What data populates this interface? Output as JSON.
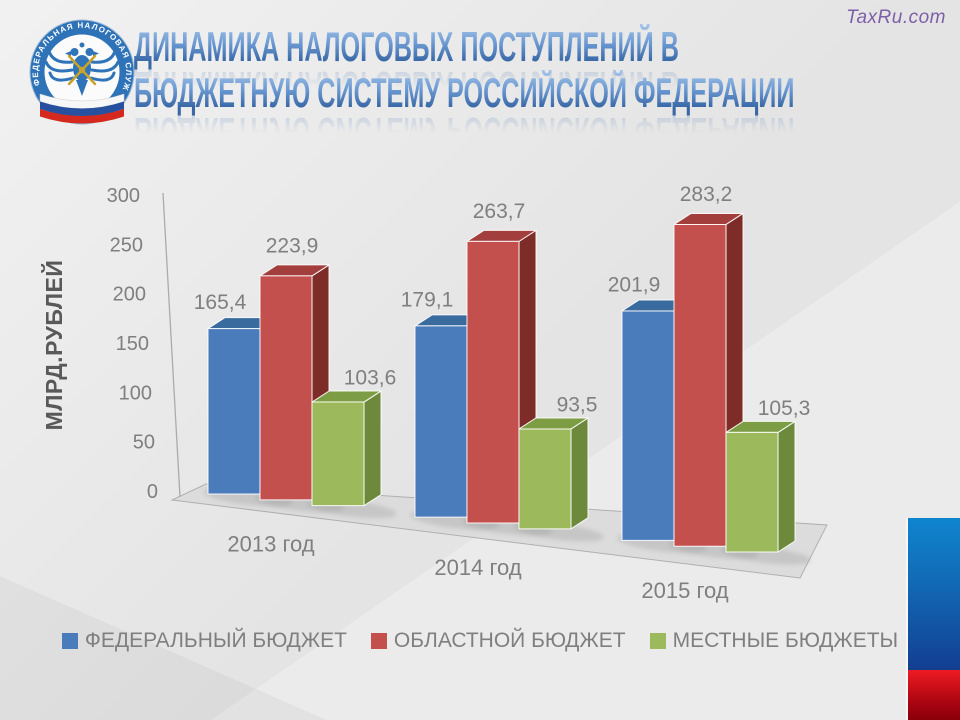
{
  "watermark": "TaxRu.com",
  "header": {
    "title_line1": "ДИНАМИКА НАЛОГОВЫХ ПОСТУПЛЕНИЙ В",
    "title_line2": "БЮДЖЕТНУЮ СИСТЕМУ РОССИЙСКОЙ ФЕДЕРАЦИИ",
    "logo_ring_text": "ФЕДЕРАЛЬНАЯ НАЛОГОВАЯ СЛУЖБА"
  },
  "chart_data": {
    "type": "bar",
    "style": "3d-clustered",
    "title": "",
    "xlabel": "",
    "ylabel": "МЛРД.РУБЛЕЙ",
    "ylim": [
      0,
      300
    ],
    "yticks": [
      300,
      250,
      200,
      150,
      100,
      50,
      0
    ],
    "grid": false,
    "legend_position": "bottom",
    "value_label_decimal_separator": ",",
    "axis_text_color": "#7f7f7f",
    "categories": [
      "2013 год",
      "2014 год",
      "2015 год"
    ],
    "series": [
      {
        "name": "ФЕДЕРАЛЬНЫЙ БЮДЖЕТ",
        "values": [
          165.4,
          179.1,
          201.9
        ],
        "color": {
          "front": "#4a7cbc",
          "top": "#3a6b9f",
          "side": "#2b547f"
        }
      },
      {
        "name": "ОБЛАСТНОЙ БЮДЖЕТ",
        "values": [
          223.9,
          263.7,
          283.2
        ],
        "color": {
          "front": "#c4504e",
          "top": "#a23f3d",
          "side": "#7e2c27"
        }
      },
      {
        "name": "МЕСТНЫЕ БЮДЖЕТЫ",
        "values": [
          103.6,
          93.5,
          105.3
        ],
        "color": {
          "front": "#9cba5c",
          "top": "#7d9d45",
          "side": "#6d8a3c"
        }
      }
    ]
  },
  "decor": {
    "background": "#e4e4e4",
    "floor": "#dcdcdc",
    "flag_blue_top": "#0f85cf",
    "flag_blue_bottom": "#123e92",
    "flag_red_top": "#ee1b23",
    "flag_red_bottom": "#8a000a",
    "watermark_purple": "#7d5fa8",
    "title_blue": "#2f5f9e"
  }
}
